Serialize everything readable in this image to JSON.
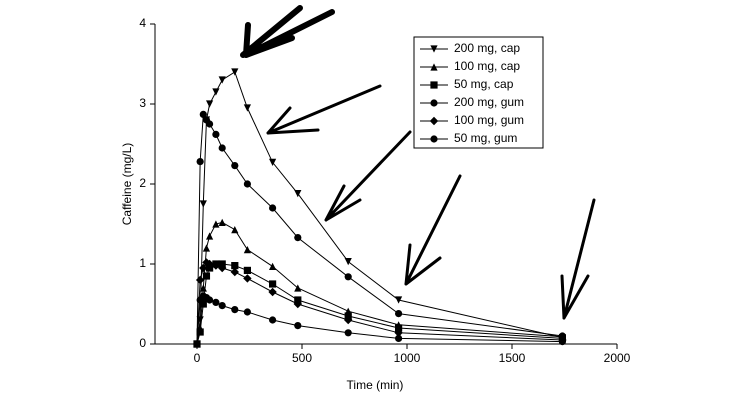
{
  "chart_data": {
    "type": "line",
    "xlabel": "Time (min)",
    "ylabel": "Caffeine (mg/L)",
    "x": [
      0,
      15,
      30,
      45,
      60,
      90,
      120,
      180,
      240,
      360,
      480,
      720,
      960,
      1740
    ],
    "series": [
      {
        "name": "200 mg, cap",
        "color": "#000000",
        "marker": "triangle-down",
        "values": [
          0,
          0.3,
          1.75,
          2.8,
          3.0,
          3.15,
          3.3,
          3.4,
          2.95,
          2.27,
          1.88,
          1.03,
          0.55,
          0.08
        ]
      },
      {
        "name": "100 mg, cap",
        "color": "#000000",
        "marker": "triangle-up",
        "values": [
          0,
          0.2,
          0.7,
          1.2,
          1.35,
          1.5,
          1.52,
          1.43,
          1.18,
          0.97,
          0.7,
          0.41,
          0.24,
          0.09
        ]
      },
      {
        "name": "50 mg, cap",
        "color": "#000000",
        "marker": "square",
        "values": [
          0,
          0.15,
          0.5,
          0.85,
          0.95,
          1.0,
          1.0,
          0.98,
          0.92,
          0.75,
          0.55,
          0.35,
          0.2,
          0.07
        ]
      },
      {
        "name": "200 mg, gum",
        "color": "#000000",
        "marker": "circle",
        "values": [
          0,
          2.28,
          2.87,
          2.8,
          2.75,
          2.62,
          2.45,
          2.23,
          2.0,
          1.7,
          1.33,
          0.84,
          0.38,
          0.1
        ]
      },
      {
        "name": "100 mg, gum",
        "color": "#000000",
        "marker": "diamond",
        "values": [
          0,
          0.8,
          0.95,
          1.02,
          1.0,
          0.98,
          0.95,
          0.9,
          0.82,
          0.65,
          0.5,
          0.3,
          0.14,
          0.05
        ]
      },
      {
        "name": "50 mg, gum",
        "color": "#000000",
        "marker": "circle",
        "values": [
          0,
          0.55,
          0.6,
          0.58,
          0.55,
          0.52,
          0.48,
          0.43,
          0.4,
          0.3,
          0.23,
          0.14,
          0.07,
          0.03
        ]
      }
    ],
    "xlim": [
      -200,
      2000
    ],
    "ylim": [
      0,
      4
    ],
    "xticks": [
      0,
      500,
      1000,
      1500,
      2000
    ],
    "yticks": [
      0,
      1,
      2,
      3,
      4
    ],
    "grid": false,
    "legend": "upper right"
  }
}
